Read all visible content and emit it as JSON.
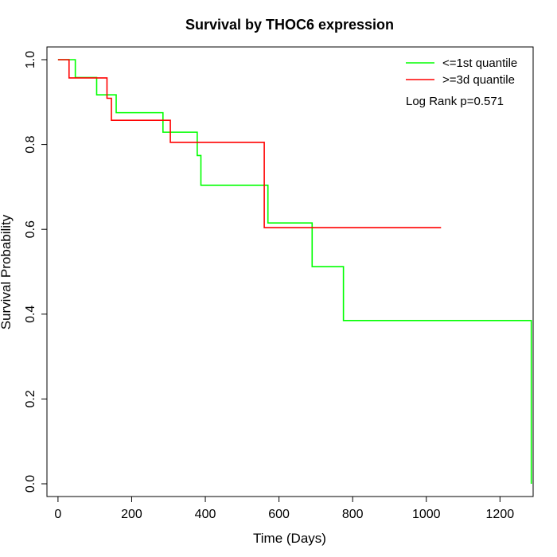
{
  "chart_data": {
    "type": "line",
    "title": "Survival by THOC6 expression",
    "xlabel": "Time (Days)",
    "ylabel": "Survival Probability",
    "xlim": [
      -30,
      1290
    ],
    "ylim": [
      -0.03,
      1.03
    ],
    "x_ticks": [
      0,
      200,
      400,
      600,
      800,
      1000,
      1200
    ],
    "y_ticks": [
      0.0,
      0.2,
      0.4,
      0.6,
      0.8,
      1.0
    ],
    "x_tick_labels": [
      "0",
      "200",
      "400",
      "600",
      "800",
      "1000",
      "1200"
    ],
    "y_tick_labels": [
      "0.0",
      "0.2",
      "0.4",
      "0.6",
      "0.8",
      "1.0"
    ],
    "grid": false,
    "legend_position": "top-right",
    "annotation": "Log Rank p=0.571",
    "series": [
      {
        "name": "<=1st quantile",
        "color": "#00ff00",
        "step": true,
        "x": [
          0,
          47,
          105,
          158,
          285,
          378,
          388,
          570,
          690,
          775,
          1285
        ],
        "y": [
          1.0,
          0.958,
          0.917,
          0.875,
          0.829,
          0.774,
          0.704,
          0.615,
          0.512,
          0.385,
          0.0
        ]
      },
      {
        "name": ">=3d quantile",
        "color": "#ff0000",
        "step": true,
        "x": [
          0,
          30,
          133,
          145,
          305,
          560
        ],
        "y": [
          1.0,
          0.957,
          0.909,
          0.857,
          0.805,
          0.604
        ],
        "end_x": 1040
      }
    ]
  }
}
